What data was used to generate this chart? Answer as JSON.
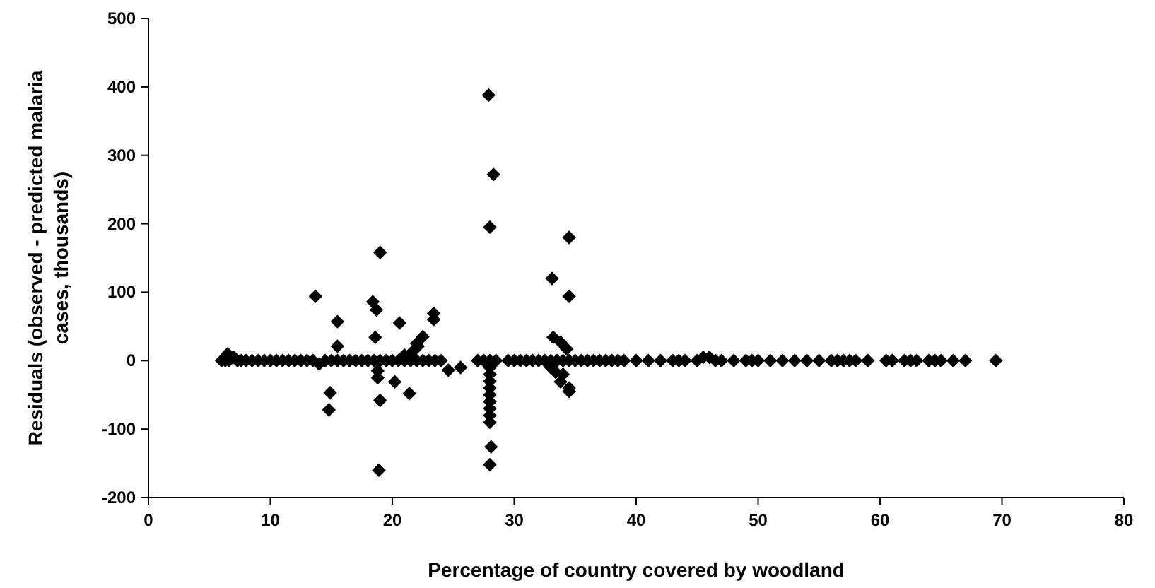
{
  "chart_data": {
    "type": "scatter",
    "xlabel": "Percentage of country covered by woodland",
    "ylabel": "Residuals (observed - predicted malaria cases, thousands)",
    "xlim": [
      0,
      80
    ],
    "xticks": [
      0,
      10,
      20,
      30,
      40,
      50,
      60,
      70,
      80
    ],
    "ylim": [
      -200,
      500
    ],
    "yticks": [
      -200,
      -100,
      0,
      100,
      200,
      300,
      400,
      500
    ],
    "grid": false,
    "marker": "diamond",
    "series": [
      {
        "color": "#000000",
        "x": [
          6,
          6.3,
          6.6,
          6.5,
          7,
          7.3,
          7.6,
          8,
          8.5,
          9,
          9.5,
          10,
          10.5,
          11,
          11.5,
          12,
          12.5,
          13,
          13.5,
          14,
          14.5,
          15,
          15.5,
          16,
          16.5,
          17,
          17.5,
          18,
          18.5,
          19,
          19.5,
          20,
          20.5,
          21,
          21.5,
          22,
          22.5,
          23,
          23.5,
          24,
          27,
          27.5,
          28,
          28.5,
          29.5,
          30,
          30.5,
          31,
          31.5,
          32,
          32.5,
          33,
          33.5,
          34,
          34.5,
          35,
          35.5,
          36,
          36.5,
          37,
          37.5,
          38,
          38.5,
          39,
          40,
          41,
          42,
          43,
          43.5,
          44,
          45,
          45.5,
          46,
          46.5,
          47,
          48,
          49,
          49.5,
          50,
          51,
          52,
          53,
          54,
          55,
          56,
          56.5,
          57,
          57.5,
          58,
          59,
          60.5,
          61,
          62,
          62.5,
          63,
          64,
          64.5,
          65,
          66,
          67,
          69.5,
          28,
          19,
          13.7,
          18.4,
          18.7,
          15.5,
          20.6,
          23.4,
          23.4,
          18.6,
          15.5,
          22.5,
          22.1,
          21.7,
          21,
          22,
          14.9,
          14.8,
          19,
          18.9,
          21.4,
          20.2,
          18.8,
          18.8,
          24.6,
          25.6,
          28,
          28,
          28,
          28,
          28,
          28,
          28,
          28,
          28,
          28.1,
          28,
          27.9,
          28.3,
          34.5,
          33.1,
          34.5,
          33.2,
          33.8,
          34.3,
          33.4,
          33.8,
          34.5,
          34.5,
          33,
          34
        ],
        "values": [
          0,
          0,
          0,
          10,
          5,
          0,
          0,
          0,
          0,
          0,
          0,
          0,
          0,
          0,
          0,
          0,
          0,
          0,
          0,
          -5,
          0,
          0,
          0,
          0,
          0,
          0,
          0,
          0,
          0,
          0,
          0,
          0,
          0,
          0,
          0,
          0,
          0,
          0,
          0,
          0,
          0,
          0,
          0,
          0,
          0,
          0,
          0,
          0,
          0,
          0,
          0,
          0,
          0,
          0,
          0,
          0,
          0,
          0,
          0,
          0,
          0,
          0,
          0,
          0,
          0,
          0,
          0,
          0,
          0,
          0,
          0,
          5,
          5,
          0,
          0,
          0,
          0,
          0,
          0,
          0,
          0,
          0,
          0,
          0,
          0,
          0,
          0,
          0,
          0,
          0,
          0,
          0,
          0,
          0,
          0,
          0,
          0,
          0,
          0,
          0,
          0,
          195,
          158,
          94,
          86,
          74,
          57,
          55,
          69,
          60,
          34,
          21,
          35,
          21,
          14,
          8,
          25,
          -47,
          -72,
          -58,
          -160,
          -48,
          -31,
          -25,
          -15,
          -14,
          -10,
          -10,
          -20,
          -30,
          -40,
          -50,
          -60,
          -70,
          -80,
          -90,
          -126,
          -152,
          388,
          272,
          180,
          120,
          94,
          34,
          27,
          17,
          -17,
          -31,
          -45,
          -40,
          -10,
          -20
        ]
      }
    ]
  }
}
